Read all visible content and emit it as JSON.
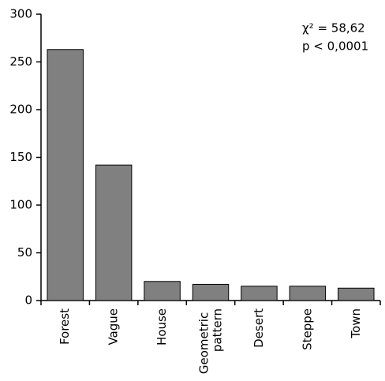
{
  "chart_data": {
    "type": "bar",
    "categories": [
      "Forest",
      "Vague",
      "House",
      "Geometric pattern",
      "Desert",
      "Steppe",
      "Town"
    ],
    "values": [
      263,
      142,
      20,
      17,
      15,
      15,
      13
    ],
    "color": "#808080",
    "ylim": [
      0,
      300
    ],
    "yticks": [
      0,
      50,
      100,
      150,
      200,
      250,
      300
    ],
    "annotations": [
      "χ² = 58,62",
      "p < 0,0001"
    ]
  }
}
